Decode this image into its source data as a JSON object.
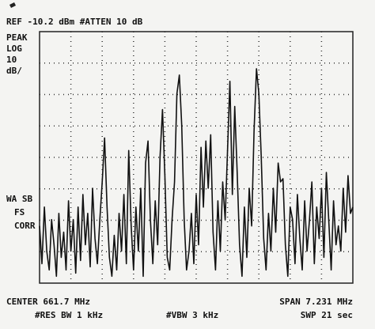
{
  "chart_data": {
    "type": "line",
    "header": "REF -10.2 dBm #ATTEN 10 dB",
    "mode_labels": [
      "PEAK",
      "LOG",
      "10",
      "dB/"
    ],
    "status_labels": [
      "WA SB",
      "FS",
      "CORR"
    ],
    "footer": {
      "center": "CENTER 661.7 MHz",
      "span": "SPAN 7.231 MHz",
      "rbw": "#RES BW 1 kHz",
      "vbw": "#VBW 3 kHz",
      "sweep": "SWP 21 sec"
    },
    "ylim": [
      -90.2,
      -10.2
    ],
    "grid_divisions": [
      10,
      8
    ],
    "color": "#111111",
    "values": [
      -72,
      -84,
      -66,
      -80,
      -86,
      -70,
      -78,
      -88,
      -68,
      -82,
      -74,
      -86,
      -64,
      -80,
      -70,
      -87,
      -66,
      -83,
      -62,
      -78,
      -68,
      -85,
      -60,
      -76,
      -84,
      -70,
      -58,
      -44,
      -66,
      -82,
      -88,
      -75,
      -86,
      -68,
      -80,
      -62,
      -84,
      -48,
      -72,
      -86,
      -66,
      -80,
      -60,
      -88,
      -52,
      -45,
      -70,
      -84,
      -64,
      -78,
      -50,
      -35,
      -56,
      -82,
      -86,
      -70,
      -58,
      -30,
      -24,
      -40,
      -70,
      -86,
      -80,
      -68,
      -84,
      -62,
      -78,
      -47,
      -66,
      -45,
      -60,
      -43,
      -74,
      -86,
      -64,
      -80,
      -58,
      -70,
      -48,
      -26,
      -62,
      -34,
      -55,
      -78,
      -88,
      -66,
      -82,
      -60,
      -72,
      -42,
      -22,
      -30,
      -50,
      -76,
      -86,
      -68,
      -80,
      -60,
      -74,
      -52,
      -58,
      -57,
      -78,
      -88,
      -66,
      -70,
      -84,
      -62,
      -76,
      -86,
      -64,
      -80,
      -70,
      -58,
      -84,
      -66,
      -76,
      -60,
      -82,
      -55,
      -70,
      -86,
      -64,
      -78,
      -72,
      -80,
      -60,
      -74,
      -56,
      -68,
      -66
    ]
  }
}
